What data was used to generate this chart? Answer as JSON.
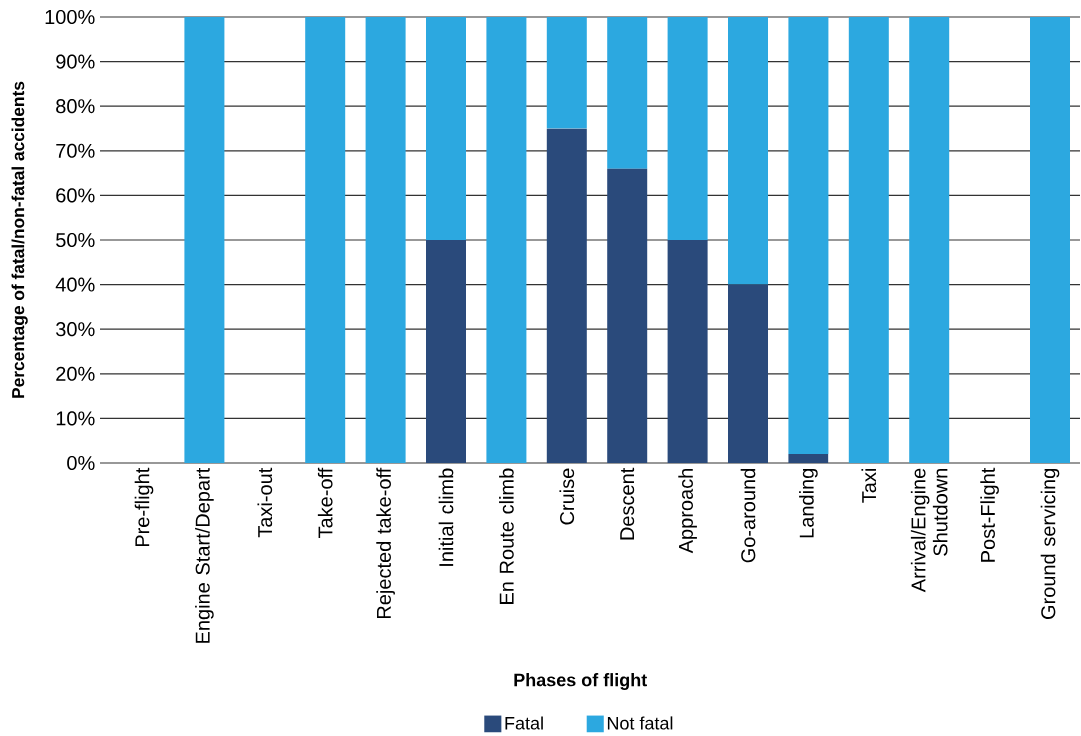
{
  "chart_data": {
    "type": "bar",
    "stacked": true,
    "xlabel": "Phases of flight",
    "ylabel": "Percentage of fatal/non-fatal accidents",
    "categories": [
      "Pre-flight",
      "Engine Start/Depart",
      "Taxi-out",
      "Take-off",
      "Rejected take-off",
      "Initial climb",
      "En Route climb",
      "Cruise",
      "Descent",
      "Approach",
      "Go-around",
      "Landing",
      "Taxi",
      "Arrival/Engine Shutdown",
      "Post-Flight",
      "Ground servicing"
    ],
    "series": [
      {
        "name": "Fatal",
        "color": "#2a4a7b",
        "values": [
          null,
          0,
          null,
          0,
          0,
          50,
          0,
          75,
          66,
          50,
          40,
          2,
          0,
          0,
          null,
          0
        ]
      },
      {
        "name": "Not fatal",
        "color": "#2ca8e0",
        "values": [
          null,
          100,
          null,
          100,
          100,
          50,
          100,
          25,
          34,
          50,
          60,
          98,
          100,
          100,
          null,
          100
        ]
      }
    ],
    "ylim": [
      0,
      100
    ],
    "yticks": [
      {
        "value": 0,
        "label": "0%"
      },
      {
        "value": 10,
        "label": "10%"
      },
      {
        "value": 20,
        "label": "20%"
      },
      {
        "value": 30,
        "label": "30%"
      },
      {
        "value": 40,
        "label": "40%"
      },
      {
        "value": 50,
        "label": "50%"
      },
      {
        "value": 60,
        "label": "60%"
      },
      {
        "value": 70,
        "label": "70%"
      },
      {
        "value": 80,
        "label": "80%"
      },
      {
        "value": 90,
        "label": "90%"
      },
      {
        "value": 100,
        "label": "100%"
      }
    ],
    "grid": "y",
    "legend": "bottom"
  }
}
